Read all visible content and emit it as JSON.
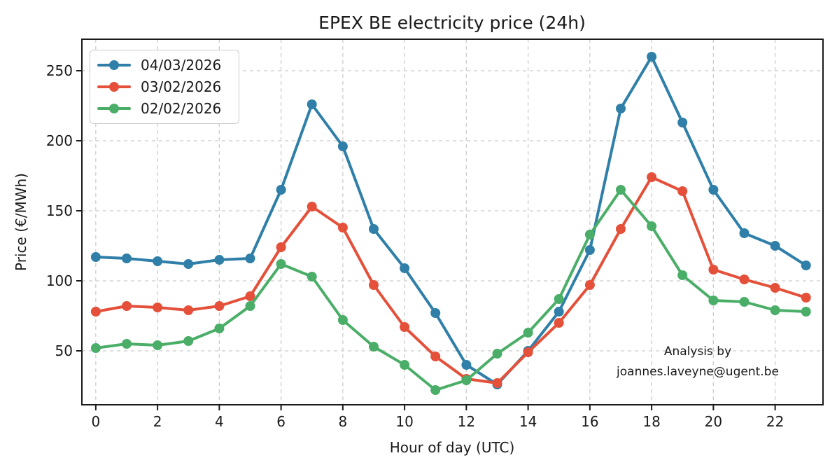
{
  "chart_data": {
    "type": "line",
    "title": "EPEX BE electricity price (24h)",
    "xlabel": "Hour of day (UTC)",
    "ylabel": "Price (€/MWh)",
    "x": [
      0,
      1,
      2,
      3,
      4,
      5,
      6,
      7,
      8,
      9,
      10,
      11,
      12,
      13,
      14,
      15,
      16,
      17,
      18,
      19,
      20,
      21,
      22,
      23
    ],
    "xticks": [
      0,
      2,
      4,
      6,
      8,
      10,
      12,
      14,
      16,
      18,
      20,
      22
    ],
    "yticks": [
      50,
      100,
      150,
      200,
      250
    ],
    "xlim": [
      -0.45,
      23.55
    ],
    "ylim": [
      11.5,
      272.5
    ],
    "grid": true,
    "grid_style": "dashed",
    "legend_position": "upper-left",
    "series": [
      {
        "name": "04/03/2026",
        "color": "#2f7fa8",
        "values": [
          117,
          116,
          114,
          112,
          115,
          116,
          165,
          226,
          196,
          137,
          109,
          77,
          40,
          26,
          50,
          78,
          122,
          223,
          260,
          213,
          165,
          134,
          125,
          111
        ]
      },
      {
        "name": "03/02/2026",
        "color": "#e4503a",
        "values": [
          78,
          82,
          81,
          79,
          82,
          89,
          124,
          153,
          138,
          97,
          67,
          46,
          30,
          27,
          49,
          70,
          97,
          137,
          174,
          164,
          108,
          101,
          95,
          88
        ]
      },
      {
        "name": "02/02/2026",
        "color": "#4bae68",
        "values": [
          52,
          55,
          54,
          57,
          66,
          82,
          112,
          103,
          72,
          53,
          40,
          22,
          29,
          48,
          63,
          87,
          133,
          165,
          139,
          104,
          86,
          85,
          79,
          78
        ]
      }
    ],
    "annotation": {
      "line1": "Analysis by",
      "line2": "joannes.laveyne@ugent.be"
    },
    "colors": {
      "text": "#1a1a1a",
      "grid": "#cccccc",
      "spine": "#1a1a1a",
      "background": "#ffffff"
    }
  }
}
